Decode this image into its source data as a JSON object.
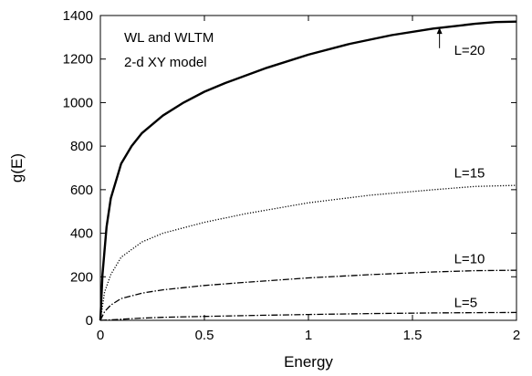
{
  "chart_data": {
    "type": "line",
    "title": "",
    "xlabel": "Energy",
    "ylabel": "g(E)",
    "xlim": [
      0,
      2
    ],
    "ylim": [
      0,
      1400
    ],
    "xticks": [
      "0",
      "0.5",
      "1",
      "1.5",
      "2"
    ],
    "yticks": [
      "0",
      "200",
      "400",
      "600",
      "800",
      "1000",
      "1200",
      "1400"
    ],
    "xtick_values": [
      0,
      0.5,
      1,
      1.5,
      2
    ],
    "ytick_values": [
      0,
      200,
      400,
      600,
      800,
      1000,
      1200,
      1400
    ],
    "grid": false,
    "annotation": [
      "WL and WLTM",
      "2-d XY model"
    ],
    "series": [
      {
        "name": "L=20",
        "style": "solid",
        "x": [
          0,
          0.01,
          0.03,
          0.05,
          0.1,
          0.15,
          0.2,
          0.3,
          0.4,
          0.5,
          0.6,
          0.8,
          1.0,
          1.2,
          1.4,
          1.6,
          1.8,
          1.9,
          2.0
        ],
        "y": [
          0,
          210,
          430,
          560,
          720,
          800,
          860,
          940,
          1000,
          1050,
          1090,
          1160,
          1220,
          1270,
          1310,
          1340,
          1362,
          1370,
          1372
        ]
      },
      {
        "name": "L=15",
        "style": "dotted",
        "x": [
          0,
          0.02,
          0.05,
          0.1,
          0.2,
          0.3,
          0.5,
          0.7,
          1.0,
          1.3,
          1.6,
          1.8,
          2.0
        ],
        "y": [
          0,
          130,
          210,
          290,
          360,
          400,
          450,
          490,
          540,
          575,
          600,
          615,
          620
        ]
      },
      {
        "name": "L=10",
        "style": "dashdot",
        "x": [
          0,
          0.02,
          0.05,
          0.1,
          0.2,
          0.3,
          0.5,
          0.7,
          1.0,
          1.3,
          1.6,
          1.8,
          2.0
        ],
        "y": [
          0,
          40,
          70,
          100,
          125,
          140,
          160,
          175,
          195,
          210,
          222,
          228,
          230
        ]
      },
      {
        "name": "L=5",
        "style": "dashdot",
        "x": [
          0,
          0.05,
          0.1,
          0.2,
          0.3,
          0.5,
          0.7,
          1.0,
          1.3,
          1.6,
          1.8,
          2.0
        ],
        "y": [
          0,
          2,
          5,
          10,
          14,
          18,
          22,
          27,
          31,
          34,
          35,
          36
        ]
      }
    ],
    "curve_labels": [
      {
        "text": "L=20",
        "x": 1.7,
        "y": 1220
      },
      {
        "text": "L=15",
        "x": 1.7,
        "y": 655
      },
      {
        "text": "L=10",
        "x": 1.7,
        "y": 262
      },
      {
        "text": "L=5",
        "x": 1.7,
        "y": 60
      }
    ],
    "arrow": {
      "from": [
        1.63,
        1250
      ],
      "to": [
        1.63,
        1345
      ]
    }
  }
}
